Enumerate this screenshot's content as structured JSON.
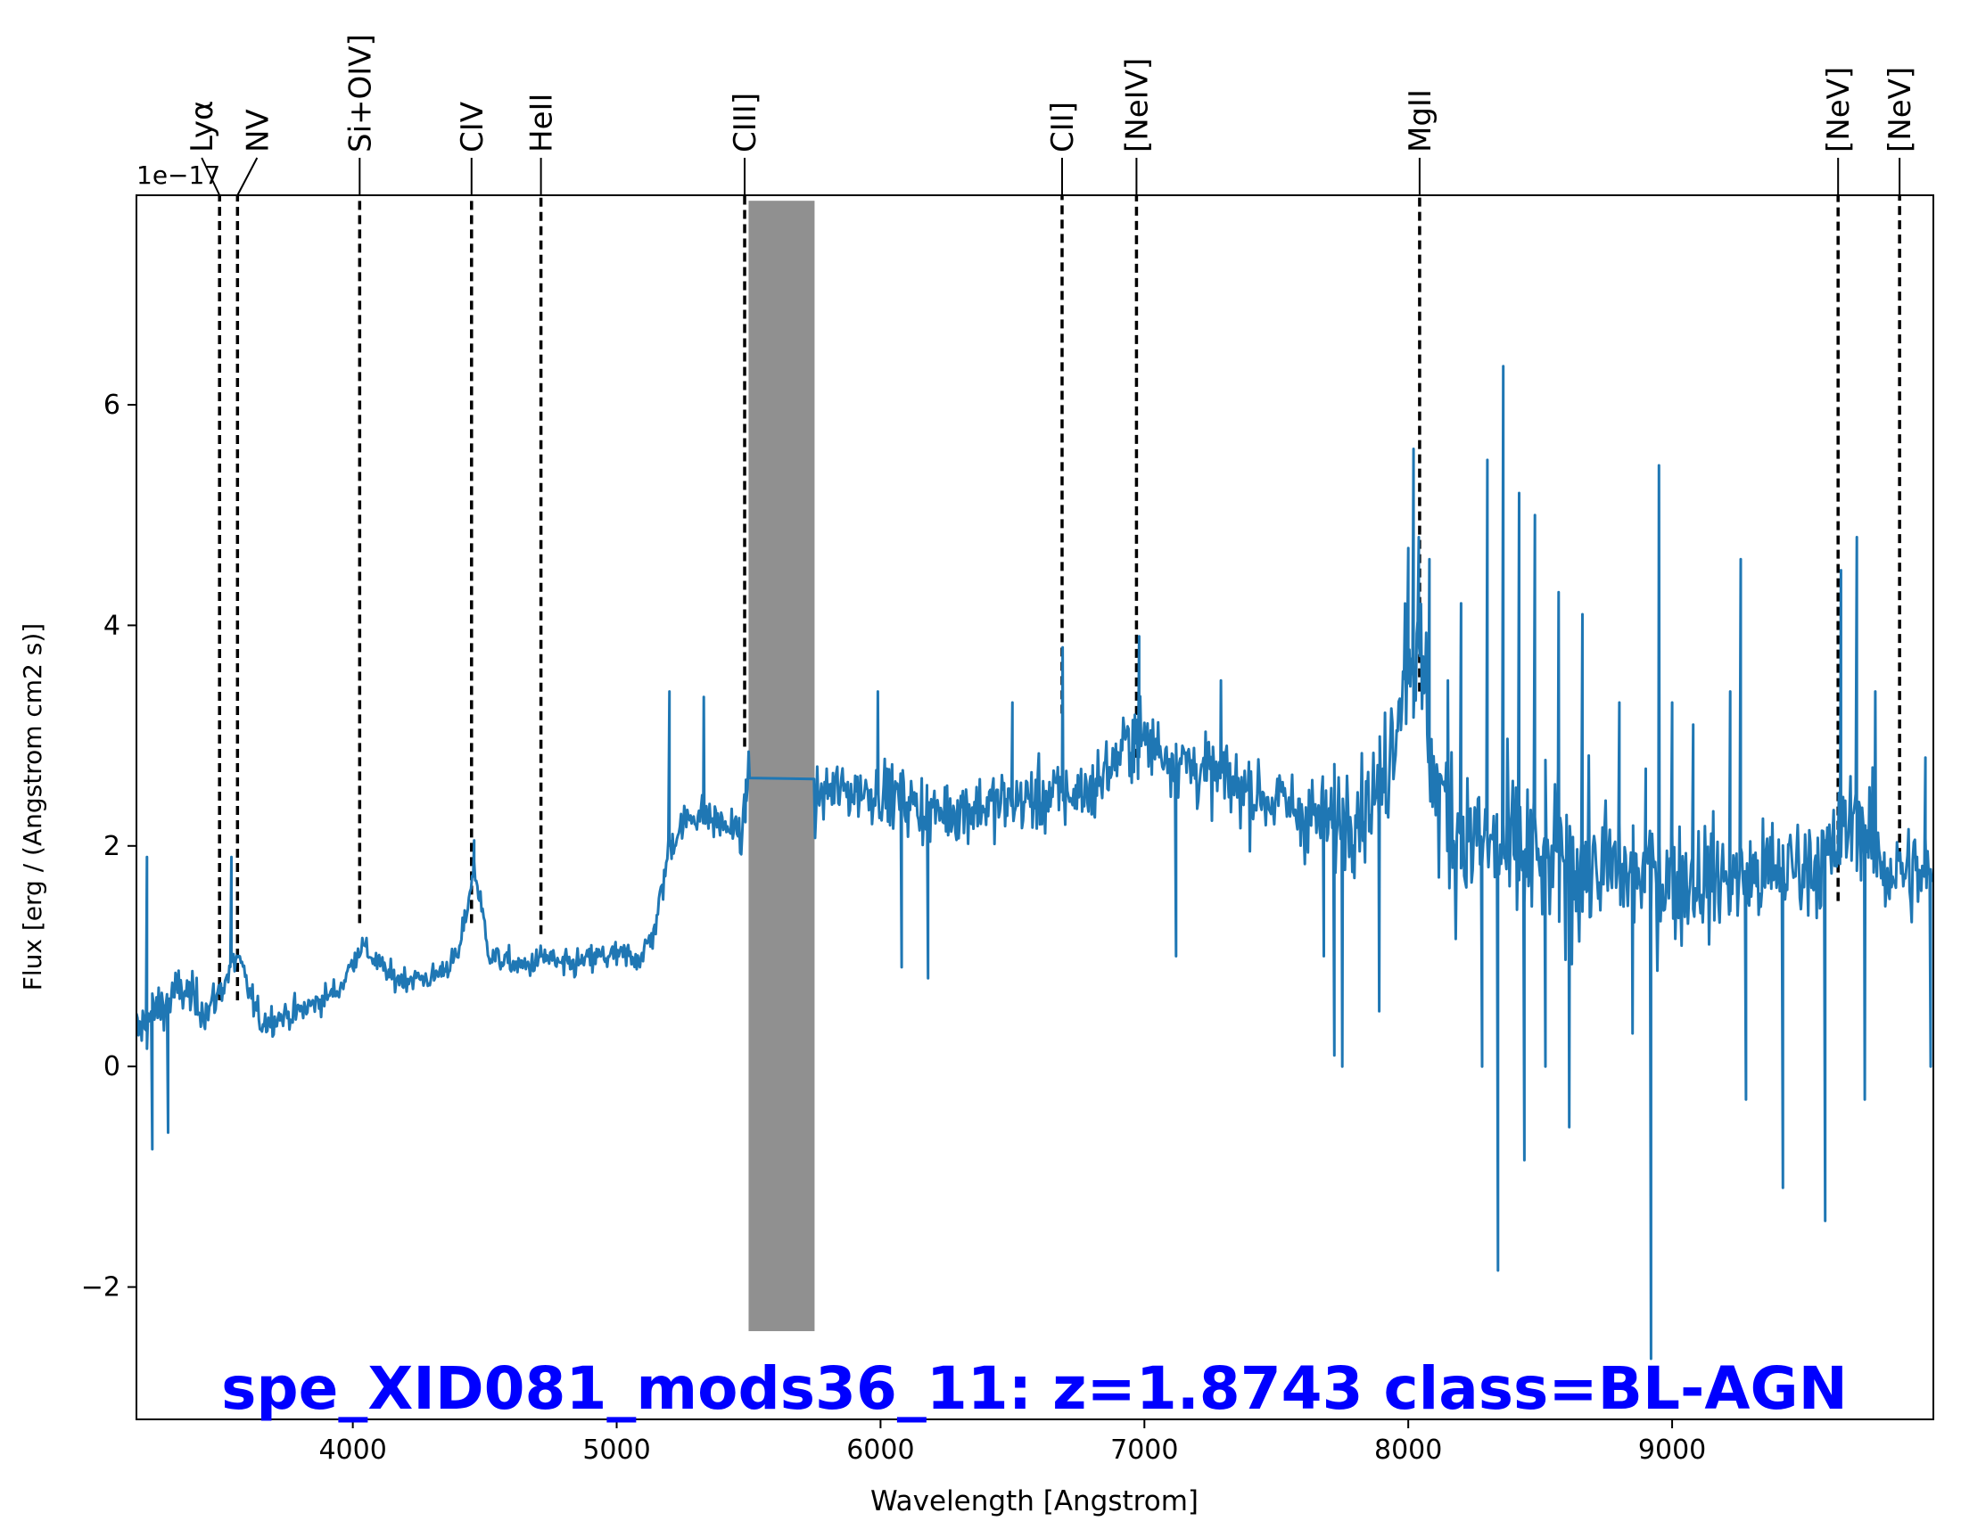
{
  "chart_data": {
    "type": "line",
    "title": "spe_XID081_mods36_11: z=1.8743 class=BL-AGN",
    "title_color": "#0000ff",
    "xlabel": "Wavelength [Angstrom]",
    "ylabel": "Flux [erg / (Angstrom cm2 s)]",
    "y_offset_label": "1e−17",
    "xlim": [
      3180,
      9990
    ],
    "ylim": [
      -3.2,
      7.9
    ],
    "xticks": [
      4000,
      5000,
      6000,
      7000,
      8000,
      9000
    ],
    "xtick_labels": [
      "4000",
      "5000",
      "6000",
      "7000",
      "8000",
      "9000"
    ],
    "yticks": [
      -2,
      0,
      2,
      4,
      6
    ],
    "ytick_labels": [
      "−2",
      "0",
      "2",
      "4",
      "6"
    ],
    "grid": false,
    "masked_region": {
      "x0": 5500,
      "x1": 5750,
      "y0": -2.4,
      "y1": 7.85,
      "color": "#909090"
    },
    "series": [
      {
        "color": "#1f77b4",
        "anchors_x": [
          3180,
          3250,
          3350,
          3450,
          3500,
          3560,
          3650,
          3800,
          3950,
          4030,
          4150,
          4300,
          4400,
          4460,
          4520,
          4650,
          4730,
          4800,
          4950,
          5000,
          5100,
          5150,
          5200,
          5250,
          5300,
          5400,
          5480,
          5500,
          5750,
          5800,
          6000,
          6200,
          6500,
          6800,
          6960,
          7200,
          7500,
          7700,
          7900,
          8000,
          8060,
          8100,
          8200,
          8400,
          8700,
          9000,
          9300,
          9600,
          9700,
          9800,
          9990
        ],
        "anchors_y": [
          0.3,
          0.5,
          0.7,
          0.5,
          0.7,
          1.0,
          0.4,
          0.5,
          0.7,
          1.1,
          0.8,
          0.8,
          1.0,
          1.8,
          1.0,
          0.9,
          1.0,
          0.9,
          1.0,
          1.0,
          1.0,
          1.3,
          2.0,
          2.2,
          2.3,
          2.2,
          2.1,
          2.7,
          2.4,
          2.5,
          2.5,
          2.3,
          2.4,
          2.5,
          3.0,
          2.7,
          2.4,
          2.2,
          2.5,
          3.8,
          3.5,
          2.5,
          2.1,
          1.9,
          1.8,
          1.7,
          1.7,
          1.9,
          2.3,
          1.8,
          1.7
        ],
        "noise_x": [
          3180,
          3600,
          4000,
          4500,
          5000,
          5500,
          5800,
          6500,
          7500,
          7800,
          8200,
          8500,
          9000,
          9500,
          9990
        ],
        "noise_sigma": [
          0.35,
          0.18,
          0.15,
          0.15,
          0.18,
          0.25,
          0.35,
          0.4,
          0.45,
          0.6,
          1.0,
          0.9,
          0.7,
          0.6,
          0.6
        ],
        "spikes": [
          {
            "x": 3220,
            "y": 1.9
          },
          {
            "x": 3240,
            "y": -0.75
          },
          {
            "x": 3300,
            "y": -0.6
          },
          {
            "x": 3540,
            "y": 1.9
          },
          {
            "x": 4460,
            "y": 2.05
          },
          {
            "x": 5200,
            "y": 3.4
          },
          {
            "x": 5330,
            "y": 3.35
          },
          {
            "x": 5490,
            "y": 2.6
          },
          {
            "x": 5990,
            "y": 3.4
          },
          {
            "x": 6080,
            "y": 0.9
          },
          {
            "x": 6180,
            "y": 0.8
          },
          {
            "x": 6500,
            "y": 3.3
          },
          {
            "x": 6690,
            "y": 3.8
          },
          {
            "x": 6980,
            "y": 3.9
          },
          {
            "x": 7120,
            "y": 1.0
          },
          {
            "x": 7290,
            "y": 3.5
          },
          {
            "x": 7680,
            "y": 1.0
          },
          {
            "x": 7720,
            "y": 0.1
          },
          {
            "x": 7750,
            "y": 0.0
          },
          {
            "x": 7890,
            "y": 0.5
          },
          {
            "x": 7970,
            "y": 3.3
          },
          {
            "x": 8000,
            "y": 4.7
          },
          {
            "x": 8020,
            "y": 5.6
          },
          {
            "x": 8040,
            "y": 4.8
          },
          {
            "x": 8080,
            "y": 4.6
          },
          {
            "x": 8150,
            "y": 3.5
          },
          {
            "x": 8200,
            "y": 4.2
          },
          {
            "x": 8280,
            "y": 0.0
          },
          {
            "x": 8300,
            "y": 5.5
          },
          {
            "x": 8340,
            "y": -1.85
          },
          {
            "x": 8360,
            "y": 6.35
          },
          {
            "x": 8420,
            "y": 5.2
          },
          {
            "x": 8440,
            "y": -0.85
          },
          {
            "x": 8480,
            "y": 5.0
          },
          {
            "x": 8520,
            "y": 0.0
          },
          {
            "x": 8570,
            "y": 4.3
          },
          {
            "x": 8610,
            "y": -0.55
          },
          {
            "x": 8660,
            "y": 4.1
          },
          {
            "x": 8800,
            "y": 3.3
          },
          {
            "x": 8850,
            "y": 0.3
          },
          {
            "x": 8900,
            "y": 2.7
          },
          {
            "x": 8920,
            "y": -2.65
          },
          {
            "x": 8950,
            "y": 5.45
          },
          {
            "x": 9000,
            "y": 3.3
          },
          {
            "x": 9080,
            "y": 3.1
          },
          {
            "x": 9220,
            "y": 3.4
          },
          {
            "x": 9260,
            "y": 4.6
          },
          {
            "x": 9280,
            "y": -0.3
          },
          {
            "x": 9420,
            "y": -1.1
          },
          {
            "x": 9580,
            "y": -1.4
          },
          {
            "x": 9640,
            "y": 4.5
          },
          {
            "x": 9700,
            "y": 4.8
          },
          {
            "x": 9730,
            "y": -0.3
          },
          {
            "x": 9770,
            "y": 3.4
          },
          {
            "x": 9960,
            "y": 2.8
          },
          {
            "x": 9980,
            "y": 0.0
          }
        ]
      }
    ],
    "lines": [
      {
        "label": "Lyα",
        "x": 3495,
        "ymin": 0.6
      },
      {
        "label": "NV",
        "x": 3563,
        "ymin": 0.6
      },
      {
        "label": "Si+OIV]",
        "x": 4026,
        "ymin": 1.3
      },
      {
        "label": "CIV",
        "x": 4450,
        "ymin": 1.3
      },
      {
        "label": "HeII",
        "x": 4713,
        "ymin": 1.2
      },
      {
        "label": "CIII]",
        "x": 5485,
        "ymin": 2.9
      },
      {
        "label": "CII]",
        "x": 6688,
        "ymin": 3.2
      },
      {
        "label": "[NeIV]",
        "x": 6970,
        "ymin": 2.8
      },
      {
        "label": "MgII",
        "x": 8043,
        "ymin": 3.4
      },
      {
        "label": "[NeV]",
        "x": 9629,
        "ymin": 1.5
      },
      {
        "label": "[NeV]",
        "x": 9862,
        "ymin": 1.9
      }
    ]
  }
}
